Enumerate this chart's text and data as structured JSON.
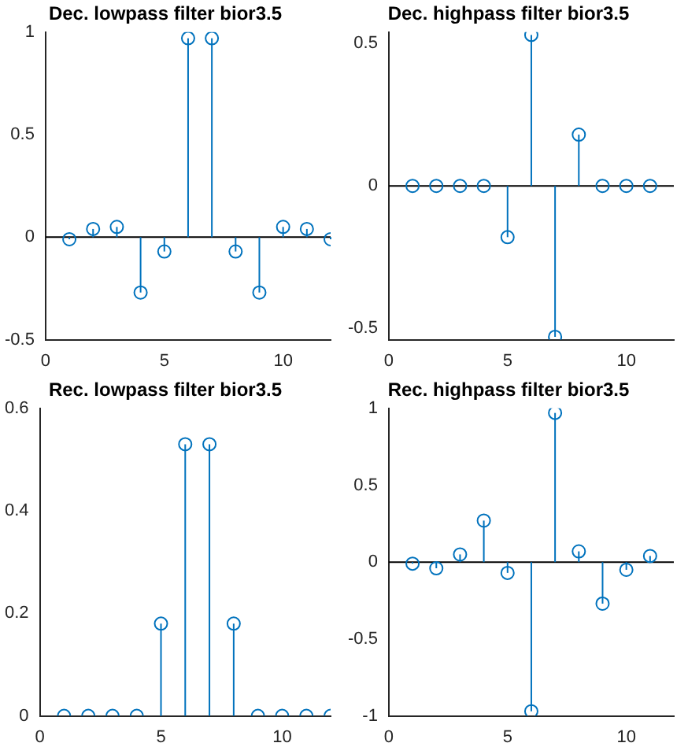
{
  "chart_data": [
    {
      "type": "lollipop",
      "title": "Dec. lowpass filter bior3.5",
      "x": [
        1,
        2,
        3,
        4,
        5,
        6,
        7,
        8,
        9,
        10,
        11,
        12
      ],
      "values": [
        -0.01,
        0.04,
        0.05,
        -0.27,
        -0.07,
        0.97,
        0.97,
        -0.07,
        -0.27,
        0.05,
        0.04,
        -0.01
      ],
      "color": "#0072bd",
      "xlim": [
        0,
        12
      ],
      "xticks": [
        0,
        5,
        10
      ],
      "ylim": [
        -0.5,
        1
      ],
      "yticks": [
        -0.5,
        0,
        0.5,
        1
      ],
      "marker": "circle",
      "grid": false,
      "ref_lines": [
        {
          "axis": "y",
          "value": 0,
          "color": "#000000"
        }
      ]
    },
    {
      "type": "lollipop",
      "title": "Dec. highpass filter bior3.5",
      "x": [
        1,
        2,
        3,
        4,
        5,
        6,
        7,
        8,
        9,
        10,
        11
      ],
      "values": [
        0,
        0,
        0,
        0,
        -0.18,
        0.53,
        -0.53,
        0.18,
        0,
        0,
        0
      ],
      "color": "#0072bd",
      "xlim": [
        0,
        12
      ],
      "xticks": [
        0,
        5,
        10
      ],
      "ylim": [
        -0.54,
        0.54
      ],
      "yticks": [
        -0.5,
        0,
        0.5
      ],
      "marker": "circle",
      "grid": false,
      "ref_lines": [
        {
          "axis": "y",
          "value": 0,
          "color": "#000000"
        }
      ]
    },
    {
      "type": "lollipop",
      "title": "Rec. lowpass filter bior3.5",
      "x": [
        1,
        2,
        3,
        4,
        5,
        6,
        7,
        8,
        9,
        10,
        11,
        12
      ],
      "values": [
        0,
        0,
        0,
        0,
        0.18,
        0.53,
        0.53,
        0.18,
        0,
        0,
        0,
        0
      ],
      "color": "#0072bd",
      "xlim": [
        0,
        12
      ],
      "xticks": [
        0,
        5,
        10
      ],
      "ylim": [
        0,
        0.6
      ],
      "yticks": [
        0,
        0.2,
        0.4,
        0.6
      ],
      "marker": "circle",
      "grid": false
    },
    {
      "type": "lollipop",
      "title": "Rec. highpass filter bior3.5",
      "x": [
        1,
        2,
        3,
        4,
        5,
        6,
        7,
        8,
        9,
        10,
        11
      ],
      "values": [
        -0.01,
        -0.04,
        0.05,
        0.27,
        -0.07,
        -0.97,
        0.97,
        0.07,
        -0.27,
        -0.05,
        0.04
      ],
      "color": "#0072bd",
      "xlim": [
        0,
        12
      ],
      "xticks": [
        0,
        5,
        10
      ],
      "ylim": [
        -1,
        1
      ],
      "yticks": [
        -1,
        -0.5,
        0,
        0.5,
        1
      ],
      "marker": "circle",
      "grid": false,
      "ref_lines": [
        {
          "axis": "y",
          "value": 0,
          "color": "#000000"
        }
      ]
    }
  ]
}
